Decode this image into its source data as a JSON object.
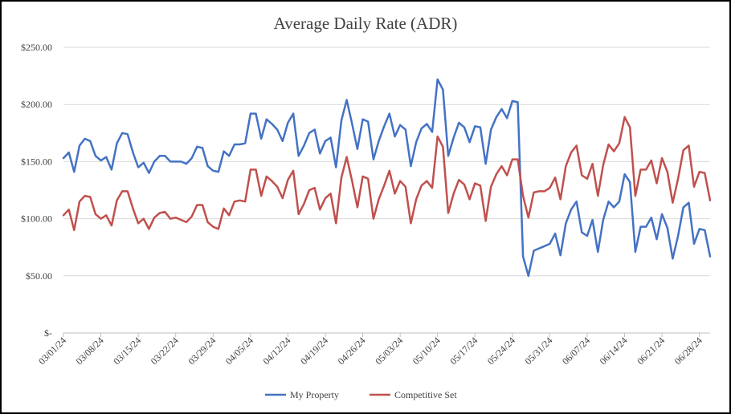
{
  "chart_data": {
    "type": "line",
    "title": "Average Daily Rate (ADR)",
    "xlabel": "",
    "ylabel": "",
    "ylim": [
      0,
      250
    ],
    "yticks": [
      0,
      50,
      100,
      150,
      200,
      250
    ],
    "ytick_labels": [
      "$-",
      "$50.00",
      "$100.00",
      "$150.00",
      "$200.00",
      "$250.00"
    ],
    "xtick_labels": [
      "03/01/24",
      "03/08/24",
      "03/15/24",
      "03/22/24",
      "03/29/24",
      "04/05/24",
      "04/12/24",
      "04/19/24",
      "04/26/24",
      "05/03/24",
      "05/10/24",
      "05/17/24",
      "05/24/24",
      "05/31/24",
      "06/07/24",
      "06/14/24",
      "06/21/24",
      "06/28/24"
    ],
    "x_start": "03/01/24",
    "x_end": "07/01/24",
    "grid": "horizontal",
    "legend": "bottom",
    "series": [
      {
        "name": "My Property",
        "color": "#4472c4",
        "values": [
          153,
          158,
          141,
          164,
          170,
          168,
          155,
          151,
          154,
          143,
          166,
          175,
          174,
          158,
          145,
          149,
          140,
          150,
          155,
          155,
          150,
          150,
          150,
          148,
          153,
          163,
          162,
          146,
          142,
          141,
          159,
          155,
          165,
          165,
          166,
          192,
          192,
          170,
          187,
          183,
          178,
          168,
          184,
          192,
          155,
          164,
          175,
          178,
          157,
          168,
          171,
          145,
          186,
          204,
          183,
          161,
          187,
          185,
          152,
          168,
          181,
          192,
          172,
          182,
          178,
          146,
          167,
          179,
          183,
          176,
          222,
          213,
          155,
          171,
          184,
          180,
          167,
          181,
          180,
          148,
          178,
          189,
          196,
          188,
          203,
          202,
          67,
          50,
          72,
          74,
          76,
          78,
          87,
          68,
          96,
          108,
          115,
          88,
          85,
          99,
          71,
          99,
          115,
          110,
          115,
          139,
          132,
          71,
          93,
          93,
          101,
          82,
          104,
          92,
          65,
          85,
          110,
          114,
          78,
          91,
          90,
          67
        ]
      },
      {
        "name": "Competitive Set",
        "color": "#c0504d",
        "values": [
          103,
          108,
          90,
          115,
          120,
          119,
          104,
          100,
          103,
          94,
          116,
          124,
          124,
          109,
          96,
          100,
          91,
          101,
          105,
          106,
          100,
          101,
          99,
          97,
          102,
          112,
          112,
          97,
          93,
          91,
          109,
          103,
          115,
          116,
          115,
          143,
          143,
          120,
          137,
          133,
          128,
          118,
          134,
          142,
          104,
          113,
          125,
          127,
          108,
          118,
          122,
          96,
          136,
          154,
          133,
          110,
          137,
          135,
          100,
          117,
          129,
          142,
          122,
          133,
          128,
          96,
          117,
          129,
          133,
          127,
          172,
          163,
          105,
          122,
          134,
          130,
          117,
          131,
          129,
          98,
          128,
          139,
          146,
          138,
          152,
          152,
          120,
          101,
          123,
          124,
          124,
          127,
          136,
          117,
          146,
          158,
          164,
          138,
          135,
          148,
          120,
          147,
          165,
          159,
          166,
          189,
          180,
          120,
          143,
          143,
          151,
          131,
          153,
          141,
          114,
          135,
          160,
          164,
          128,
          141,
          140,
          116
        ]
      }
    ]
  }
}
